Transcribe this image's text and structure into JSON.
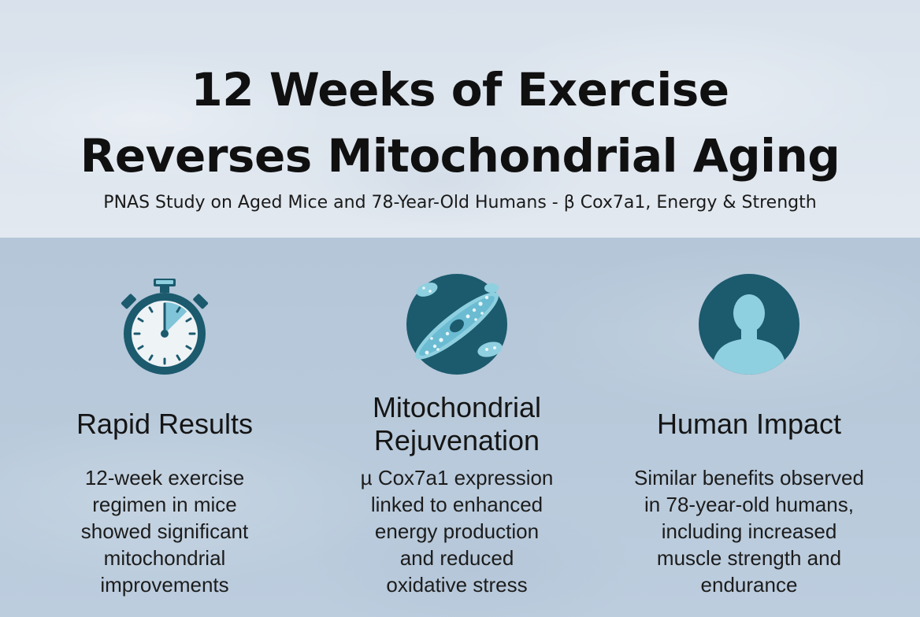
{
  "title": {
    "line1": "12 Weeks of Exercise",
    "line2": "Reverses Mitochondrial Aging"
  },
  "subtitle": "PNAS Study on Aged Mice and 78-Year-Old Humans - β Cox7a1, Energy & Strength",
  "colors": {
    "header_bg": "#dde5ee",
    "panel_bg": "#b7c9da",
    "icon_teal": "#1c5a6e",
    "icon_light": "#8fd0e0"
  },
  "columns": [
    {
      "icon": "stopwatch-icon",
      "heading": "Rapid Results",
      "body": [
        "12-week exercise",
        "regimen in mice",
        "showed significant",
        "mitochondrial",
        "improvements"
      ]
    },
    {
      "icon": "mitochondria-icon",
      "heading_lines": [
        "Mitochondrial",
        "Rejuvenation"
      ],
      "body": [
        "µ Cox7a1 expression",
        "linked to enhanced",
        "energy production",
        "and reduced",
        "oxidative stress"
      ]
    },
    {
      "icon": "person-icon",
      "heading": "Human Impact",
      "body": [
        "Similar benefits observed",
        "in 78-year-old humans,",
        "including increased",
        "muscle strength and",
        "endurance"
      ]
    }
  ]
}
